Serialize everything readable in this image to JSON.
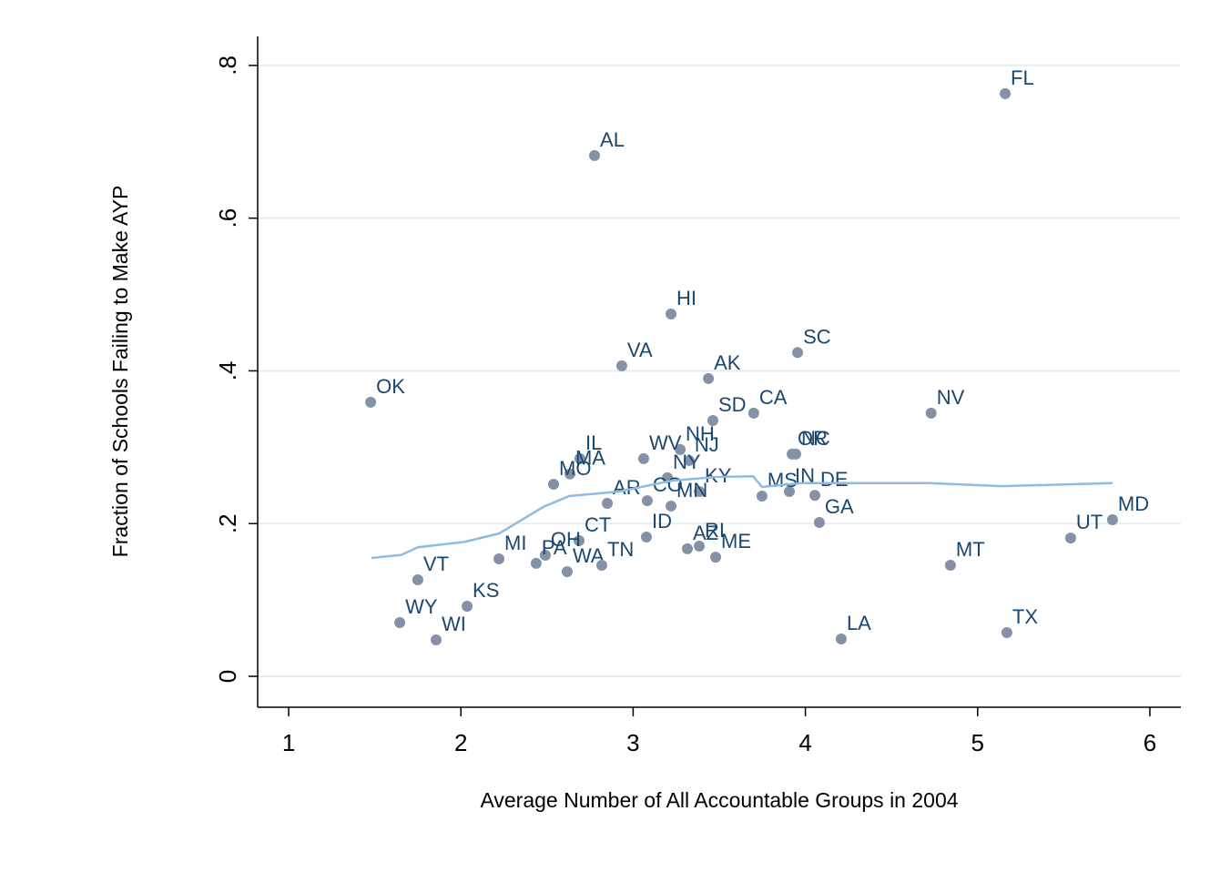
{
  "chart_data": {
    "type": "scatter",
    "xlabel": "Average Number of All Accountable Groups in 2004",
    "ylabel": "Fraction of Schools Failing to Make AYP",
    "xlim": [
      0.82,
      6.18
    ],
    "ylim": [
      -0.0405,
      0.838
    ],
    "xticks": [
      1,
      2,
      3,
      4,
      5,
      6
    ],
    "yticks": [
      0,
      {
        "value": 0.2,
        "label": ".2"
      },
      {
        "value": 0.4,
        "label": ".4"
      },
      {
        "value": 0.6,
        "label": ".6"
      },
      {
        "value": 0.8,
        "label": ".8"
      }
    ],
    "grid": true,
    "series": [
      {
        "type": "scatter",
        "color": "#8491a6",
        "labels": [
          "FL",
          "AL",
          "HI",
          "SC",
          "VA",
          "AK",
          "OK",
          "NV",
          "CA",
          "SD",
          "OR",
          "NC",
          "NH",
          "WV",
          "NJ",
          "IL",
          "MA",
          "MO",
          "NY",
          "KY",
          "MN",
          "CO",
          "AR",
          "IN",
          "DE",
          "MS",
          "GA",
          "MD",
          "UT",
          "CT",
          "ID",
          "AZ",
          "RI",
          "ME",
          "OH",
          "PA",
          "MI",
          "WA",
          "TN",
          "MT",
          "VT",
          "KS",
          "WY",
          "WI",
          "LA",
          "TX"
        ],
        "x": [
          5.16,
          2.776,
          3.22,
          3.955,
          2.934,
          3.437,
          1.476,
          4.73,
          3.7,
          3.463,
          3.923,
          3.944,
          3.273,
          3.061,
          3.325,
          2.691,
          2.633,
          2.538,
          3.199,
          3.384,
          3.22,
          3.082,
          2.85,
          3.907,
          4.055,
          3.748,
          4.081,
          5.783,
          5.54,
          2.686,
          3.077,
          3.315,
          3.384,
          3.479,
          2.49,
          2.437,
          2.221,
          2.617,
          2.818,
          4.842,
          1.75,
          2.036,
          1.645,
          1.856,
          4.208,
          5.17
        ],
        "values": [
          0.763,
          0.682,
          0.4745,
          0.424,
          0.4066,
          0.39,
          0.359,
          0.3446,
          0.3446,
          0.335,
          0.291,
          0.291,
          0.297,
          0.285,
          0.2826,
          0.285,
          0.265,
          0.2516,
          0.26,
          0.242,
          0.223,
          0.23,
          0.2265,
          0.242,
          0.237,
          0.236,
          0.2015,
          0.205,
          0.181,
          0.1776,
          0.1824,
          0.167,
          0.1705,
          0.156,
          0.1586,
          0.148,
          0.1538,
          0.137,
          0.1455,
          0.1455,
          0.1264,
          0.0918,
          0.0703,
          0.0477,
          0.0489,
          0.0572
        ]
      },
      {
        "type": "line",
        "color": "#8fbbe3",
        "x": [
          1.481,
          1.655,
          1.75,
          2.02,
          2.221,
          2.48,
          2.628,
          2.919,
          3.22,
          3.474,
          3.696,
          3.748,
          3.976,
          4.716,
          5.14,
          5.783
        ],
        "values": [
          0.155,
          0.159,
          0.169,
          0.176,
          0.187,
          0.222,
          0.236,
          0.242,
          0.256,
          0.261,
          0.262,
          0.248,
          0.253,
          0.253,
          0.249,
          0.253
        ]
      }
    ]
  }
}
